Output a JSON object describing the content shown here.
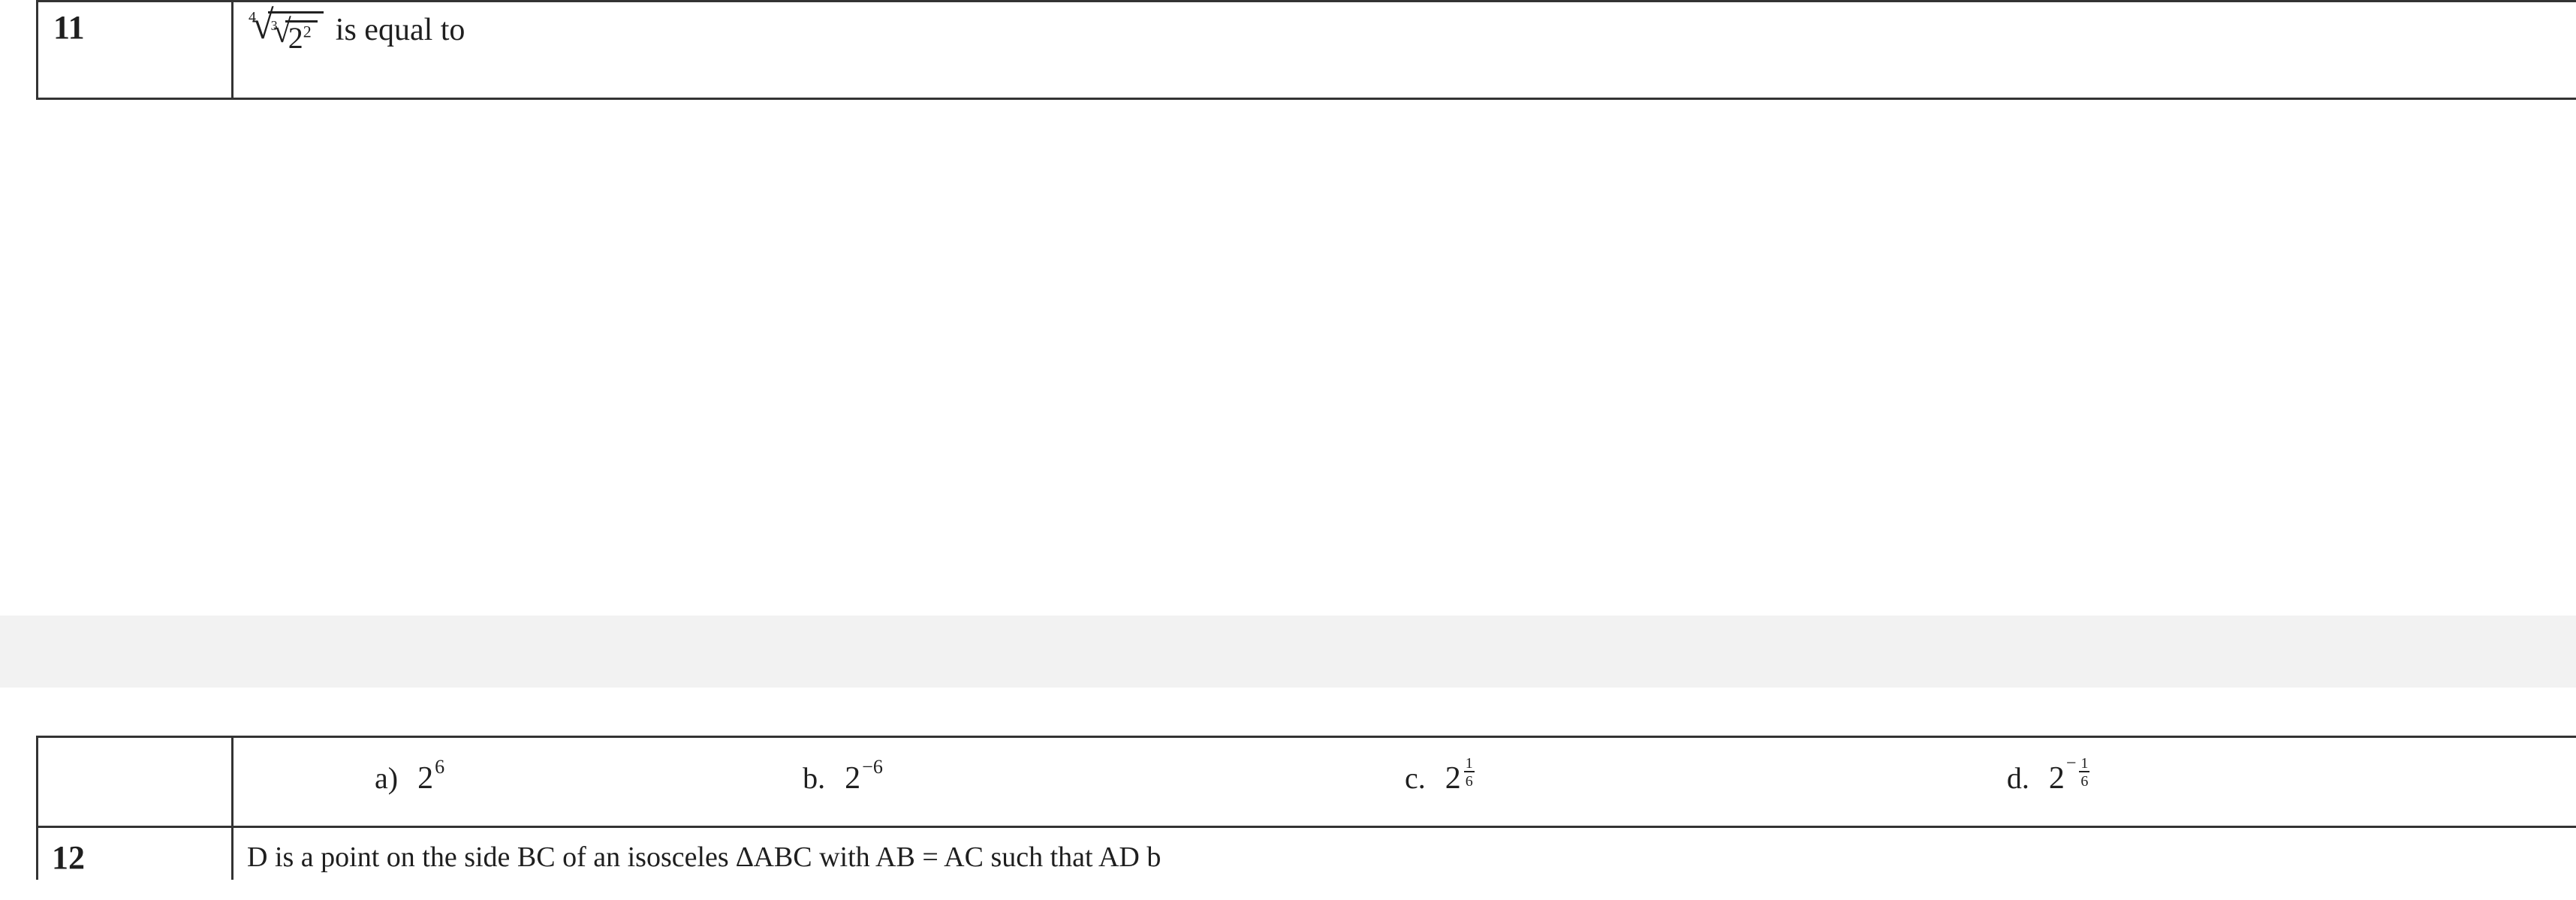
{
  "question": {
    "number": "11",
    "outer_root_degree": "4",
    "inner_root_degree": "3",
    "radicand_base": "2",
    "radicand_exp": "2",
    "suffix_text": " is equal to"
  },
  "options": {
    "a": {
      "label": "a)",
      "base": "2",
      "exp": "6"
    },
    "b": {
      "label": "b.",
      "base": "2",
      "exp": "−6"
    },
    "c": {
      "label": "c.",
      "base": "2",
      "frac_num": "1",
      "frac_den": "6"
    },
    "d": {
      "label": "d.",
      "base": "2",
      "neg": "−",
      "frac_num": "1",
      "frac_den": "6"
    }
  },
  "next_row": {
    "number": "12",
    "partial_text": "D is a point on the side BC of an isosceles ∆ABC with AB = AC such that AD b"
  },
  "colors": {
    "border": "#333333",
    "text": "#1f1f1f",
    "band": "#f2f2f2",
    "background": "#ffffff"
  }
}
